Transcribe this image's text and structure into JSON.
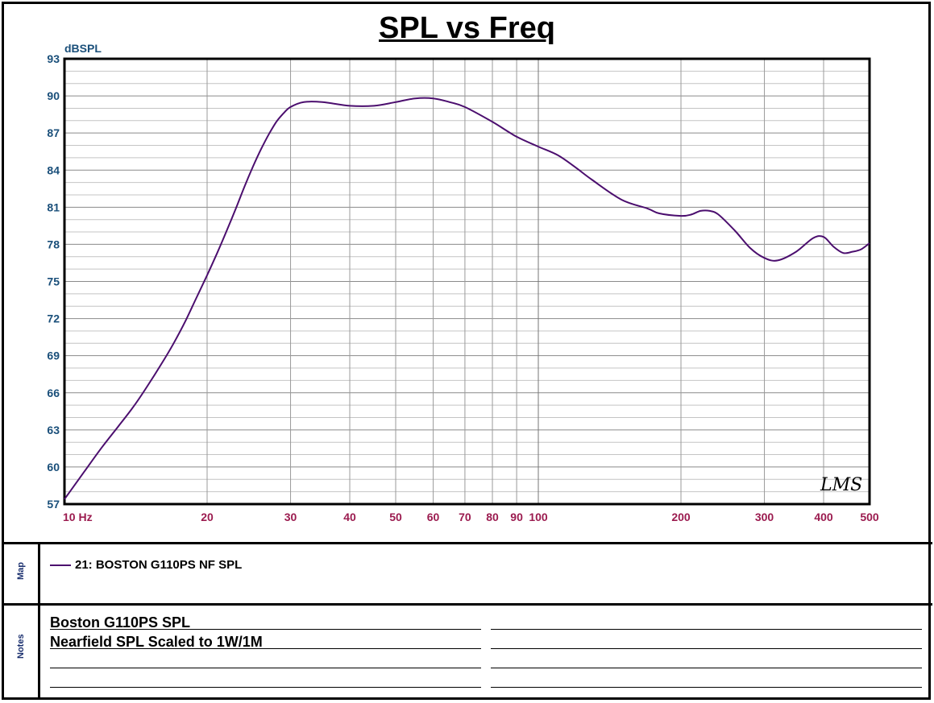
{
  "chart_data": {
    "type": "line",
    "title": "SPL vs Freq",
    "ylabel": "dBSPL",
    "xlabel": "",
    "x_scale": "log",
    "xlim": [
      10,
      500
    ],
    "ylim": [
      57,
      93
    ],
    "y_ticks": [
      93,
      90,
      87,
      84,
      81,
      78,
      75,
      72,
      69,
      66,
      63,
      60,
      57
    ],
    "x_ticks": [
      {
        "value": 10,
        "label": "10 Hz"
      },
      {
        "value": 20,
        "label": "20"
      },
      {
        "value": 30,
        "label": "30"
      },
      {
        "value": 40,
        "label": "40"
      },
      {
        "value": 50,
        "label": "50"
      },
      {
        "value": 60,
        "label": "60"
      },
      {
        "value": 70,
        "label": "70"
      },
      {
        "value": 80,
        "label": "80"
      },
      {
        "value": 90,
        "label": "90"
      },
      {
        "value": 100,
        "label": "100"
      },
      {
        "value": 200,
        "label": "200"
      },
      {
        "value": 300,
        "label": "300"
      },
      {
        "value": 400,
        "label": "400"
      },
      {
        "value": 500,
        "label": "500"
      }
    ],
    "grid": true,
    "series": [
      {
        "name": "21: BOSTON G110PS NF SPL",
        "color": "#4b0e6e",
        "points": [
          [
            10,
            57.4
          ],
          [
            11,
            59.6
          ],
          [
            12,
            61.6
          ],
          [
            13,
            63.3
          ],
          [
            14,
            64.9
          ],
          [
            15,
            66.6
          ],
          [
            16,
            68.3
          ],
          [
            17,
            70.0
          ],
          [
            18,
            71.8
          ],
          [
            19,
            73.7
          ],
          [
            20,
            75.5
          ],
          [
            21,
            77.3
          ],
          [
            22,
            79.1
          ],
          [
            23,
            80.9
          ],
          [
            24,
            82.7
          ],
          [
            25,
            84.3
          ],
          [
            26,
            85.7
          ],
          [
            27,
            86.9
          ],
          [
            28,
            87.9
          ],
          [
            29,
            88.6
          ],
          [
            30,
            89.1
          ],
          [
            32,
            89.5
          ],
          [
            35,
            89.5
          ],
          [
            40,
            89.2
          ],
          [
            45,
            89.2
          ],
          [
            50,
            89.5
          ],
          [
            55,
            89.8
          ],
          [
            60,
            89.8
          ],
          [
            65,
            89.5
          ],
          [
            70,
            89.1
          ],
          [
            80,
            87.9
          ],
          [
            90,
            86.7
          ],
          [
            100,
            85.9
          ],
          [
            110,
            85.2
          ],
          [
            120,
            84.2
          ],
          [
            130,
            83.2
          ],
          [
            150,
            81.6
          ],
          [
            170,
            80.9
          ],
          [
            180,
            80.5
          ],
          [
            200,
            80.3
          ],
          [
            210,
            80.4
          ],
          [
            220,
            80.7
          ],
          [
            230,
            80.7
          ],
          [
            240,
            80.4
          ],
          [
            260,
            79.1
          ],
          [
            280,
            77.7
          ],
          [
            300,
            76.9
          ],
          [
            320,
            76.7
          ],
          [
            350,
            77.4
          ],
          [
            380,
            78.5
          ],
          [
            400,
            78.6
          ],
          [
            420,
            77.8
          ],
          [
            440,
            77.3
          ],
          [
            460,
            77.4
          ],
          [
            480,
            77.6
          ],
          [
            500,
            78.1
          ]
        ]
      }
    ]
  },
  "map": {
    "label": "Map",
    "legend": "21: BOSTON G110PS NF SPL"
  },
  "notes": {
    "label": "Notes",
    "lines": [
      "Boston G110PS SPL",
      "Nearfield SPL Scaled to 1W/1M"
    ]
  },
  "watermark": "LMS"
}
